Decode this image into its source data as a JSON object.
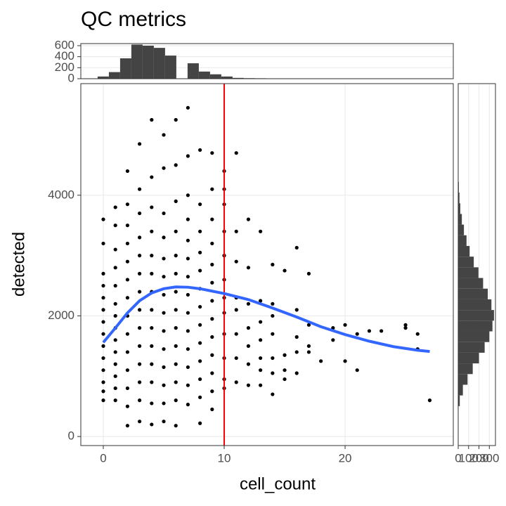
{
  "chart_data": [
    {
      "type": "scatter",
      "title": "QC metrics",
      "x_label": "cell_count",
      "y_label": "detected",
      "color": "#000000",
      "grid": true,
      "xlim": [
        -1.86,
        28.95
      ],
      "xticks": [
        0,
        10,
        20
      ],
      "ylim": [
        -150,
        5850
      ],
      "yticks": [
        0,
        2000,
        4000
      ],
      "x": [
        0,
        0,
        0,
        0,
        0,
        0,
        0,
        0,
        0,
        0,
        0,
        0,
        0,
        0,
        1,
        1,
        1,
        1,
        1,
        1,
        1,
        1,
        1,
        1,
        1,
        1,
        1,
        1,
        2,
        2,
        2,
        2,
        2,
        2,
        2,
        2,
        2,
        2,
        2,
        2,
        2,
        2,
        3,
        3,
        3,
        3,
        3,
        3,
        3,
        3,
        3,
        3,
        3,
        3,
        3,
        3,
        4,
        4,
        4,
        4,
        4,
        4,
        4,
        4,
        4,
        4,
        4,
        4,
        4,
        4,
        5,
        5,
        5,
        5,
        5,
        5,
        5,
        5,
        5,
        5,
        5,
        5,
        5,
        5,
        6,
        6,
        6,
        6,
        6,
        6,
        6,
        6,
        6,
        6,
        6,
        6,
        6,
        6,
        7,
        7,
        7,
        7,
        7,
        7,
        7,
        7,
        7,
        7,
        7,
        7,
        7,
        7,
        8,
        8,
        8,
        8,
        8,
        8,
        8,
        8,
        8,
        8,
        8,
        8,
        8,
        9,
        9,
        9,
        9,
        9,
        9,
        9,
        9,
        9,
        9,
        9,
        9,
        9,
        10,
        10,
        10,
        10,
        10,
        10,
        10,
        10,
        10,
        10,
        10,
        10,
        11,
        11,
        11,
        11,
        11,
        11,
        11,
        11,
        12,
        12,
        12,
        12,
        12,
        12,
        12,
        13,
        13,
        13,
        13,
        13,
        13,
        13,
        14,
        14,
        14,
        14,
        14,
        14,
        14,
        15,
        15,
        15,
        15,
        16,
        16,
        16,
        16,
        16,
        17,
        17,
        17,
        17,
        18,
        19,
        19,
        20,
        20,
        21,
        21,
        22,
        23,
        25,
        25,
        26,
        26,
        27
      ],
      "y": [
        600,
        750,
        900,
        1100,
        1300,
        1500,
        1700,
        1900,
        2100,
        2300,
        2500,
        2700,
        3200,
        3600,
        600,
        800,
        1000,
        1200,
        1400,
        1600,
        1800,
        2000,
        2200,
        2500,
        2800,
        3100,
        3500,
        3800,
        180,
        500,
        800,
        1100,
        1400,
        1700,
        2000,
        2300,
        2600,
        2900,
        3200,
        3500,
        3850,
        4400,
        250,
        600,
        900,
        1200,
        1500,
        1800,
        2100,
        2400,
        2700,
        3000,
        3300,
        3700,
        4100,
        4850,
        200,
        550,
        900,
        1200,
        1500,
        1800,
        2100,
        2400,
        2700,
        3000,
        3400,
        3800,
        4300,
        5250,
        250,
        550,
        850,
        1150,
        1450,
        1750,
        2050,
        2350,
        2650,
        2950,
        3300,
        3700,
        4450,
        5000,
        180,
        600,
        900,
        1200,
        1500,
        1800,
        2100,
        2400,
        2700,
        3000,
        3400,
        3900,
        4500,
        5250,
        530,
        850,
        1150,
        1450,
        1750,
        2050,
        2350,
        2650,
        2950,
        3250,
        3600,
        4000,
        4650,
        5450,
        220,
        650,
        950,
        1250,
        1550,
        1850,
        2150,
        2450,
        2750,
        3050,
        3400,
        3850,
        4750,
        450,
        750,
        1050,
        1350,
        1650,
        1950,
        2250,
        2550,
        2850,
        3200,
        3600,
        4100,
        4700,
        800,
        950,
        1300,
        1700,
        2050,
        2300,
        2600,
        3000,
        3400,
        3850,
        4100,
        4400,
        900,
        1300,
        1700,
        2100,
        2300,
        2900,
        3400,
        4700,
        850,
        1200,
        1500,
        1800,
        2200,
        2800,
        3600,
        850,
        1100,
        1300,
        1600,
        1900,
        2250,
        3400,
        700,
        1050,
        1300,
        1700,
        2000,
        2200,
        2850,
        950,
        1100,
        1350,
        2750,
        1050,
        1400,
        1650,
        2100,
        3130,
        1400,
        1500,
        1850,
        2700,
        1250,
        1600,
        1800,
        1250,
        1850,
        1100,
        1700,
        1750,
        1750,
        1800,
        1850,
        1450,
        1700,
        600
      ],
      "trend": {
        "color": "#3366ff",
        "x": [
          0,
          1,
          2,
          3,
          4,
          5,
          6,
          7,
          8,
          9,
          10,
          12,
          14,
          16,
          18,
          20,
          22,
          24,
          26,
          27
        ],
        "y": [
          1560,
          1800,
          2050,
          2250,
          2380,
          2450,
          2480,
          2475,
          2450,
          2410,
          2370,
          2270,
          2130,
          1980,
          1820,
          1690,
          1580,
          1490,
          1430,
          1410
        ]
      },
      "vline": {
        "value": 10,
        "color": "#ff0000"
      }
    },
    {
      "type": "histogram",
      "orientation": "vertical",
      "color": "#444444",
      "grid": true,
      "xlim": [
        -1.86,
        28.95
      ],
      "ylim": [
        0,
        638
      ],
      "yticks": [
        0,
        200,
        400,
        600
      ],
      "bins": [
        -0.47,
        0.46,
        1.39,
        2.32,
        3.25,
        4.18,
        5.11,
        6.04,
        6.97,
        7.9,
        8.83,
        9.76,
        10.69,
        11.62,
        12.55,
        13.48,
        14.41,
        15.34,
        16.27,
        17.2,
        18.13,
        19.06,
        19.99,
        20.92,
        21.85,
        22.78,
        23.71,
        24.64,
        25.57,
        26.5,
        27.43
      ],
      "counts": [
        40,
        120,
        370,
        620,
        600,
        560,
        420,
        0,
        280,
        130,
        80,
        40,
        15,
        10,
        8,
        5,
        4,
        3,
        3,
        2,
        2,
        1,
        1,
        1,
        0,
        1,
        2,
        1,
        0,
        1
      ]
    },
    {
      "type": "histogram",
      "orientation": "horizontal",
      "color": "#444444",
      "grid": true,
      "ylim": [
        -150,
        5850
      ],
      "xlim": [
        0,
        359
      ],
      "xticks": [
        0,
        100,
        200,
        300
      ],
      "bins": [
        150,
        327,
        504,
        681,
        858,
        1035,
        1212,
        1389,
        1566,
        1743,
        1920,
        2097,
        2274,
        2451,
        2628,
        2805,
        2982,
        3159,
        3336,
        3513,
        3690,
        3867,
        4044,
        4221,
        4398,
        4575,
        4752,
        4929,
        5106,
        5283,
        5460
      ],
      "counts": [
        1,
        3,
        15,
        45,
        90,
        140,
        200,
        255,
        300,
        330,
        345,
        320,
        285,
        240,
        195,
        150,
        110,
        80,
        55,
        35,
        20,
        12,
        6,
        3,
        2,
        1,
        1,
        1,
        0,
        1
      ]
    }
  ]
}
